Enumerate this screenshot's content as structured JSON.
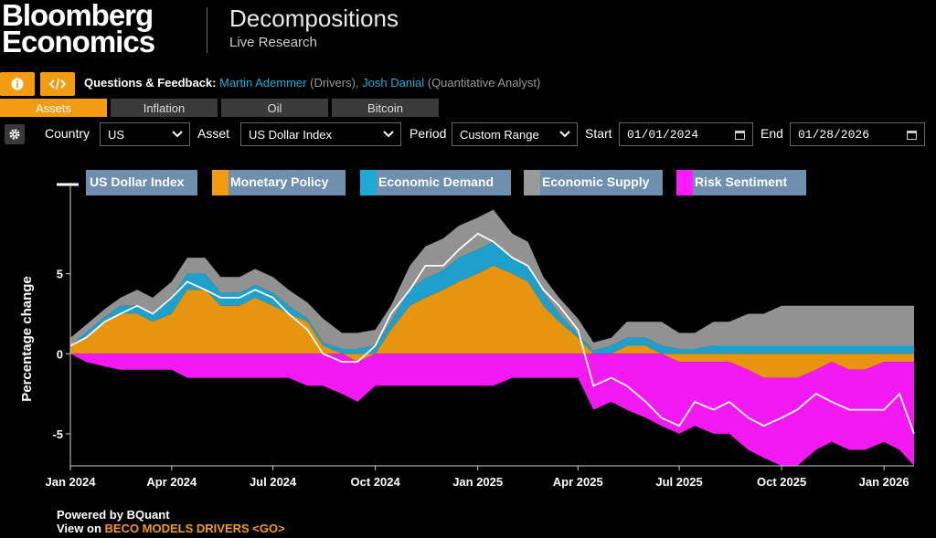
{
  "logo": {
    "line1": "Bloomberg",
    "line2": "Economics"
  },
  "header": {
    "title": "Decompositions",
    "subtitle": "Live Research"
  },
  "feedback": {
    "label": "Questions & Feedback:",
    "person1": "Martin Ademmer",
    "role1": "(Drivers),",
    "person2": "Josh Danial",
    "role2": "(Quantitative Analyst)"
  },
  "tabs": [
    "Assets",
    "Inflation",
    "Oil",
    "Bitcoin"
  ],
  "controls": {
    "country_label": "Country",
    "country_value": "US",
    "asset_label": "Asset",
    "asset_value": "US Dollar Index",
    "period_label": "Period",
    "period_value": "Custom Range",
    "start_label": "Start",
    "start_value": "01/01/2024",
    "end_label": "End",
    "end_value": "01/28/2026"
  },
  "footer": {
    "powered": "Powered by BQuant",
    "view_prefix": "View on",
    "view_link": "BECO MODELS DRIVERS <GO>"
  },
  "colors": {
    "accent": "#f39c12",
    "link": "#1fa9d6",
    "monetary": "#f39c12",
    "demand": "#1fa9d6",
    "supply": "#9a9a9a",
    "risk": "#ff1aff",
    "index_line": "#ffffff"
  },
  "chart_data": {
    "type": "area",
    "ylabel": "Percentage change",
    "yticks": [
      -5,
      0,
      5
    ],
    "ylim": [
      -7,
      10
    ],
    "xlim": [
      "2024-01-01",
      "2026-01-28"
    ],
    "xticks": [
      {
        "label": "Jan 2024",
        "date": "2024-01-01"
      },
      {
        "label": "Apr 2024",
        "date": "2024-04-01"
      },
      {
        "label": "Jul 2024",
        "date": "2024-07-01"
      },
      {
        "label": "Oct 2024",
        "date": "2024-10-01"
      },
      {
        "label": "Jan 2025",
        "date": "2025-01-01"
      },
      {
        "label": "Apr 2025",
        "date": "2025-04-01"
      },
      {
        "label": "Jul 2025",
        "date": "2025-07-01"
      },
      {
        "label": "Oct 2025",
        "date": "2025-10-01"
      },
      {
        "label": "Jan 2026",
        "date": "2026-01-01"
      }
    ],
    "legend": [
      "US Dollar Index",
      "Monetary Policy",
      "Economic Demand",
      "Economic Supply",
      "Risk Sentiment"
    ],
    "x": [
      "2024-01-01",
      "2024-01-15",
      "2024-02-01",
      "2024-02-15",
      "2024-03-01",
      "2024-03-15",
      "2024-04-01",
      "2024-04-15",
      "2024-05-01",
      "2024-05-15",
      "2024-06-01",
      "2024-06-15",
      "2024-07-01",
      "2024-07-15",
      "2024-08-01",
      "2024-08-15",
      "2024-09-01",
      "2024-09-15",
      "2024-10-01",
      "2024-10-15",
      "2024-11-01",
      "2024-11-15",
      "2024-12-01",
      "2024-12-15",
      "2025-01-01",
      "2025-01-15",
      "2025-02-01",
      "2025-02-15",
      "2025-03-01",
      "2025-03-15",
      "2025-04-01",
      "2025-04-15",
      "2025-05-01",
      "2025-05-15",
      "2025-06-01",
      "2025-06-15",
      "2025-07-01",
      "2025-07-15",
      "2025-08-01",
      "2025-08-15",
      "2025-09-01",
      "2025-09-15",
      "2025-10-01",
      "2025-10-15",
      "2025-11-01",
      "2025-11-15",
      "2025-12-01",
      "2025-12-15",
      "2026-01-01",
      "2026-01-15",
      "2026-01-28"
    ],
    "series": [
      {
        "name": "US Dollar Index",
        "values": [
          0.5,
          1.0,
          2.0,
          2.5,
          3.0,
          2.5,
          3.5,
          4.5,
          4.0,
          3.5,
          3.5,
          4.0,
          3.5,
          2.5,
          1.5,
          0.0,
          -0.5,
          -0.5,
          0.5,
          2.5,
          4.0,
          5.5,
          5.5,
          6.5,
          7.5,
          7.0,
          6.0,
          5.5,
          4.0,
          3.0,
          1.5,
          -2.0,
          -1.5,
          -2.0,
          -3.0,
          -4.0,
          -4.5,
          -3.0,
          -3.5,
          -3.0,
          -4.0,
          -4.5,
          -4.0,
          -3.5,
          -2.5,
          -3.0,
          -3.5,
          -3.5,
          -3.5,
          -2.5,
          -5.0
        ]
      },
      {
        "name": "Monetary Policy",
        "values": [
          0.5,
          1.0,
          2.0,
          2.5,
          2.5,
          2.0,
          2.5,
          4.0,
          4.0,
          3.0,
          3.0,
          3.5,
          3.0,
          2.5,
          2.0,
          0.5,
          0.0,
          -0.5,
          0.0,
          1.5,
          3.0,
          3.5,
          4.0,
          4.5,
          5.0,
          5.5,
          5.0,
          4.5,
          3.0,
          2.0,
          1.0,
          0.0,
          0.0,
          0.5,
          0.5,
          0.0,
          -0.5,
          -0.5,
          -0.5,
          -0.5,
          -1.0,
          -1.5,
          -1.5,
          -1.5,
          -1.0,
          -0.5,
          -1.0,
          -1.0,
          -0.5,
          -0.5,
          -0.5
        ]
      },
      {
        "name": "Economic Demand",
        "values": [
          0.0,
          0.3,
          0.3,
          0.5,
          0.5,
          0.5,
          1.0,
          1.0,
          1.0,
          0.8,
          0.8,
          0.8,
          0.8,
          0.5,
          0.2,
          0.2,
          0.3,
          0.3,
          0.5,
          0.5,
          1.0,
          1.2,
          1.2,
          1.5,
          1.5,
          1.5,
          1.0,
          1.0,
          0.8,
          0.5,
          0.2,
          0.2,
          0.5,
          0.5,
          0.5,
          0.5,
          0.3,
          0.3,
          0.5,
          0.5,
          0.5,
          0.5,
          0.5,
          0.5,
          0.5,
          0.5,
          0.5,
          0.5,
          0.5,
          0.5,
          0.5
        ]
      },
      {
        "name": "Economic Supply",
        "values": [
          0.5,
          0.5,
          0.5,
          0.5,
          1.0,
          1.0,
          1.0,
          1.0,
          1.0,
          1.0,
          1.0,
          1.0,
          1.0,
          1.0,
          1.0,
          1.5,
          1.0,
          1.0,
          1.0,
          1.0,
          1.5,
          2.0,
          2.0,
          2.0,
          2.0,
          2.0,
          1.5,
          1.5,
          1.0,
          1.0,
          1.0,
          0.5,
          0.5,
          1.0,
          1.0,
          1.5,
          1.0,
          1.0,
          1.5,
          1.5,
          2.0,
          2.0,
          2.5,
          2.5,
          2.5,
          2.5,
          2.5,
          2.5,
          2.5,
          2.5,
          2.5
        ]
      },
      {
        "name": "Risk Sentiment",
        "values": [
          0.0,
          -0.5,
          -0.8,
          -1.0,
          -1.0,
          -1.0,
          -1.0,
          -1.5,
          -1.5,
          -1.5,
          -1.5,
          -1.5,
          -1.5,
          -1.5,
          -2.0,
          -2.0,
          -2.5,
          -2.5,
          -2.0,
          -2.0,
          -2.0,
          -2.0,
          -2.0,
          -2.0,
          -2.0,
          -2.0,
          -1.5,
          -1.5,
          -1.5,
          -1.5,
          -1.5,
          -3.5,
          -3.0,
          -3.5,
          -4.0,
          -4.5,
          -4.5,
          -4.0,
          -4.5,
          -4.5,
          -5.0,
          -5.0,
          -5.5,
          -5.5,
          -5.0,
          -5.0,
          -5.0,
          -5.0,
          -5.0,
          -5.5,
          -6.5
        ]
      }
    ]
  }
}
